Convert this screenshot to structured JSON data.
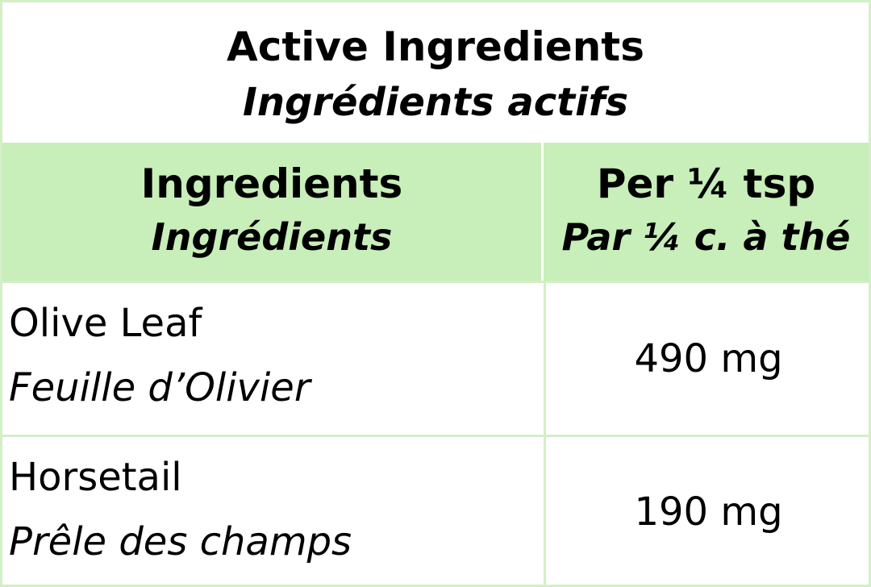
{
  "title": {
    "en": "Active Ingredients",
    "fr": "Ingrédients actifs"
  },
  "header": {
    "col1": {
      "en": "Ingredients",
      "fr": "Ingrédients"
    },
    "col2": {
      "en": "Per ¼ tsp",
      "fr": "Par ¼ c. à thé"
    }
  },
  "rows": [
    {
      "en": "Olive Leaf",
      "fr": "Feuille d’Olivier",
      "amount": "490 mg"
    },
    {
      "en": "Horsetail",
      "fr": "Prêle des champs",
      "amount": "190 mg"
    }
  ],
  "colors": {
    "header_bg": "#c8eeb9",
    "border": "#d3efc6"
  }
}
